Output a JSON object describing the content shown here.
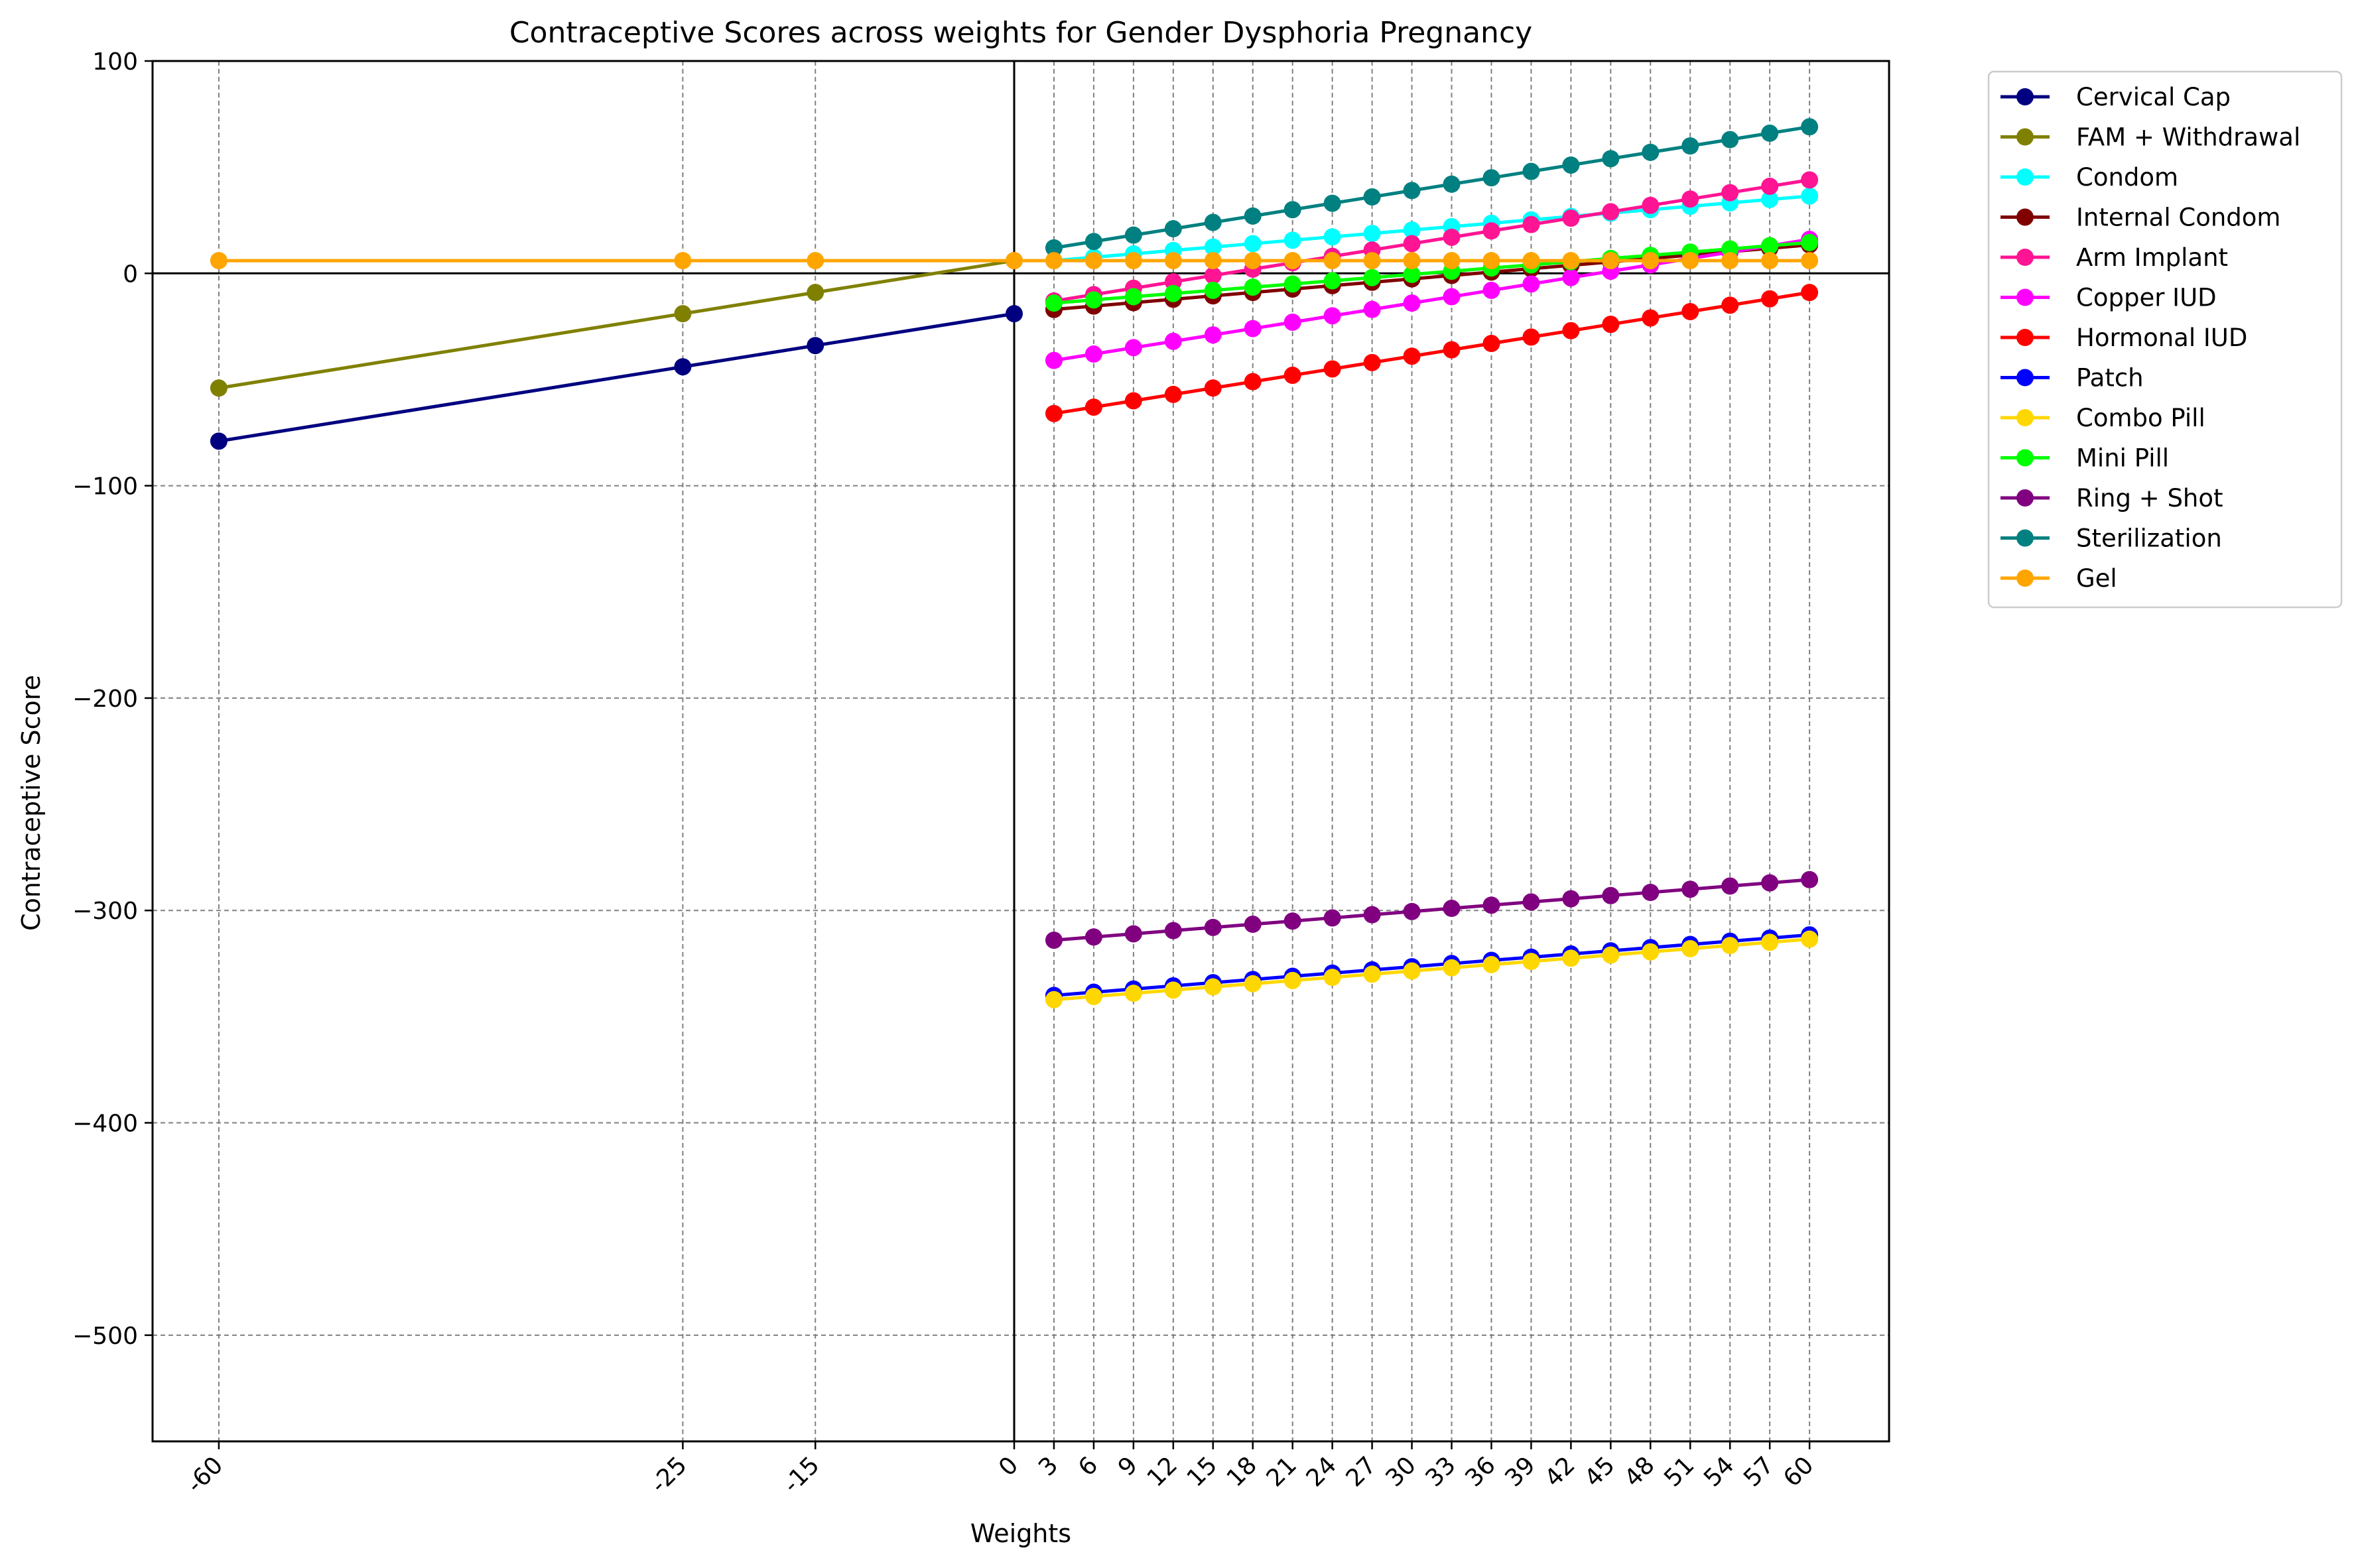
{
  "chart_data": {
    "type": "line",
    "title": "Contraceptive Scores across weights for Gender Dysphoria Pregnancy",
    "xlabel": "Weights",
    "ylabel": "Contraceptive Score",
    "xlim": [
      -65,
      66
    ],
    "ylim": [
      -550,
      100
    ],
    "grid": true,
    "legend": "outside-top-right",
    "x_ticks": [
      -60,
      -25,
      -15,
      0,
      3,
      6,
      9,
      12,
      15,
      18,
      21,
      24,
      27,
      30,
      33,
      36,
      39,
      42,
      45,
      48,
      51,
      54,
      57,
      60
    ],
    "y_ticks": [
      100,
      0,
      -100,
      -200,
      -300,
      -400,
      -500
    ],
    "y_tick_labels": [
      "100",
      "0",
      "−100",
      "−200",
      "−300",
      "−400",
      "−500"
    ],
    "series": [
      {
        "name": "Cervical Cap",
        "color": "#000080",
        "x": [
          -60,
          -25,
          -15,
          0
        ],
        "y": [
          -79,
          -44,
          -34,
          -19
        ]
      },
      {
        "name": "FAM + Withdrawal",
        "color": "#808000",
        "x": [
          -60,
          -25,
          -15,
          0
        ],
        "y": [
          -54,
          -19,
          -9,
          6
        ]
      },
      {
        "name": "Condom",
        "color": "#00ffff",
        "x": [
          3,
          6,
          9,
          12,
          15,
          18,
          21,
          24,
          27,
          30,
          33,
          36,
          39,
          42,
          45,
          48,
          51,
          54,
          57,
          60
        ],
        "y": [
          6,
          7.6,
          9.2,
          10.8,
          12.4,
          14,
          15.6,
          17.2,
          18.8,
          20.4,
          22,
          23.6,
          25.2,
          26.8,
          28.4,
          30,
          31.6,
          33.2,
          34.8,
          36.4
        ]
      },
      {
        "name": "Internal Condom",
        "color": "#800000",
        "x": [
          3,
          6,
          9,
          12,
          15,
          18,
          21,
          24,
          27,
          30,
          33,
          36,
          39,
          42,
          45,
          48,
          51,
          54,
          57,
          60
        ],
        "y": [
          -17,
          -15.4,
          -13.8,
          -12.2,
          -10.6,
          -9,
          -7.4,
          -5.8,
          -4.2,
          -2.6,
          -1,
          0.6,
          2.2,
          3.8,
          5.4,
          7,
          8.6,
          10.2,
          11.8,
          13.4
        ]
      },
      {
        "name": "Arm Implant",
        "color": "#ff1493",
        "x": [
          3,
          6,
          9,
          12,
          15,
          18,
          21,
          24,
          27,
          30,
          33,
          36,
          39,
          42,
          45,
          48,
          51,
          54,
          57,
          60
        ],
        "y": [
          -13,
          -10,
          -7,
          -4,
          -1,
          2,
          5,
          8,
          11,
          14,
          17,
          20,
          23,
          26,
          29,
          32,
          35,
          38,
          41,
          44
        ]
      },
      {
        "name": "Copper IUD",
        "color": "#ff00ff",
        "x": [
          3,
          6,
          9,
          12,
          15,
          18,
          21,
          24,
          27,
          30,
          33,
          36,
          39,
          42,
          45,
          48,
          51,
          54,
          57,
          60
        ],
        "y": [
          -41,
          -38,
          -35,
          -32,
          -29,
          -26,
          -23,
          -20,
          -17,
          -14,
          -11,
          -8,
          -5,
          -2,
          1,
          4,
          7,
          10,
          13,
          16
        ]
      },
      {
        "name": "Hormonal IUD",
        "color": "#ff0000",
        "x": [
          3,
          6,
          9,
          12,
          15,
          18,
          21,
          24,
          27,
          30,
          33,
          36,
          39,
          42,
          45,
          48,
          51,
          54,
          57,
          60
        ],
        "y": [
          -66,
          -63,
          -60,
          -57,
          -54,
          -51,
          -48,
          -45,
          -42,
          -39,
          -36,
          -33,
          -30,
          -27,
          -24,
          -21,
          -18,
          -15,
          -12,
          -9
        ]
      },
      {
        "name": "Patch",
        "color": "#0000ff",
        "x": [
          3,
          6,
          9,
          12,
          15,
          18,
          21,
          24,
          27,
          30,
          33,
          36,
          39,
          42,
          45,
          48,
          51,
          54,
          57,
          60
        ],
        "y": [
          -340,
          -338.5,
          -337,
          -335.5,
          -334,
          -332.5,
          -331,
          -329.5,
          -328,
          -326.5,
          -325,
          -323.5,
          -322,
          -320.5,
          -319,
          -317.5,
          -316,
          -314.5,
          -313,
          -311.5
        ]
      },
      {
        "name": "Combo Pill",
        "color": "#ffd700",
        "x": [
          3,
          6,
          9,
          12,
          15,
          18,
          21,
          24,
          27,
          30,
          33,
          36,
          39,
          42,
          45,
          48,
          51,
          54,
          57,
          60
        ],
        "y": [
          -342,
          -340.5,
          -339,
          -337.5,
          -336,
          -334.5,
          -333,
          -331.5,
          -330,
          -328.5,
          -327,
          -325.5,
          -324,
          -322.5,
          -321,
          -319.5,
          -318,
          -316.5,
          -315,
          -313.5
        ]
      },
      {
        "name": "Mini Pill",
        "color": "#00ff00",
        "x": [
          3,
          6,
          9,
          12,
          15,
          18,
          21,
          24,
          27,
          30,
          33,
          36,
          39,
          42,
          45,
          48,
          51,
          54,
          57,
          60
        ],
        "y": [
          -14,
          -12.5,
          -11,
          -9.5,
          -8,
          -6.5,
          -5,
          -3.5,
          -2,
          -0.5,
          1,
          2.5,
          4,
          5.5,
          7,
          8.5,
          10,
          11.5,
          13,
          14.5
        ]
      },
      {
        "name": "Ring + Shot",
        "color": "#800080",
        "x": [
          3,
          6,
          9,
          12,
          15,
          18,
          21,
          24,
          27,
          30,
          33,
          36,
          39,
          42,
          45,
          48,
          51,
          54,
          57,
          60
        ],
        "y": [
          -314,
          -312.5,
          -311,
          -309.5,
          -308,
          -306.5,
          -305,
          -303.5,
          -302,
          -300.5,
          -299,
          -297.5,
          -296,
          -294.5,
          -293,
          -291.5,
          -290,
          -288.5,
          -287,
          -285.5
        ]
      },
      {
        "name": "Sterilization",
        "color": "#008080",
        "x": [
          3,
          6,
          9,
          12,
          15,
          18,
          21,
          24,
          27,
          30,
          33,
          36,
          39,
          42,
          45,
          48,
          51,
          54,
          57,
          60
        ],
        "y": [
          12,
          15,
          18,
          21,
          24,
          27,
          30,
          33,
          36,
          39,
          42,
          45,
          48,
          51,
          54,
          57,
          60,
          63,
          66,
          69
        ]
      },
      {
        "name": "Gel",
        "color": "#ffa500",
        "x": [
          -60,
          -25,
          -15,
          0,
          3,
          6,
          9,
          12,
          15,
          18,
          21,
          24,
          27,
          30,
          33,
          36,
          39,
          42,
          45,
          48,
          51,
          54,
          57,
          60
        ],
        "y": [
          6,
          6,
          6,
          6,
          6,
          6,
          6,
          6,
          6,
          6,
          6,
          6,
          6,
          6,
          6,
          6,
          6,
          6,
          6,
          6,
          6,
          6,
          6,
          6
        ]
      }
    ]
  }
}
